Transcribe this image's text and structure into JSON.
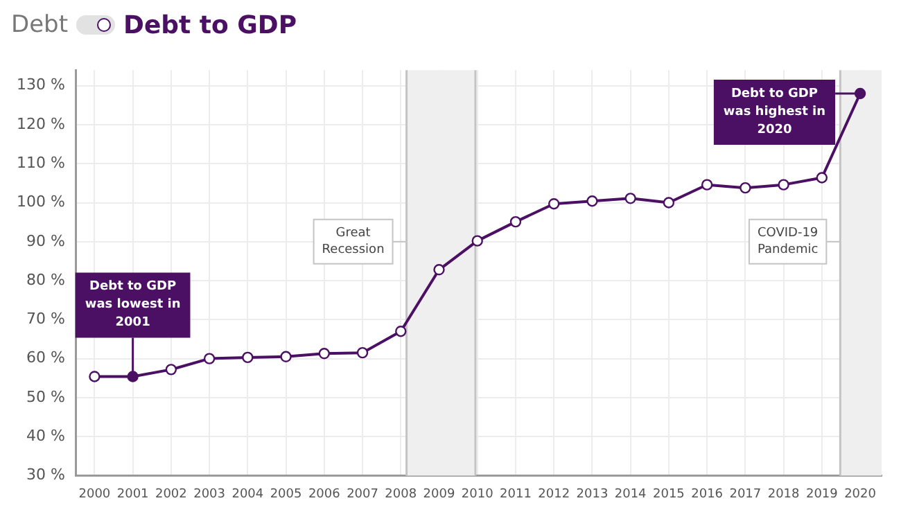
{
  "chart_data": {
    "type": "line",
    "title": "Debt to GDP",
    "subtitle": "Debt",
    "x": [
      2000,
      2001,
      2002,
      2003,
      2004,
      2005,
      2006,
      2007,
      2008,
      2009,
      2010,
      2011,
      2012,
      2013,
      2014,
      2015,
      2016,
      2017,
      2018,
      2019,
      2020
    ],
    "series": [
      {
        "color": "#4b0f63",
        "values": [
          55.4,
          55.4,
          57.2,
          60,
          60.3,
          60.5,
          61.3,
          61.5,
          67,
          82.8,
          90.2,
          95.1,
          99.7,
          100.4,
          101.1,
          100,
          104.6,
          103.8,
          104.6,
          106.4,
          128
        ]
      }
    ],
    "xlim": [
      1999.52,
      2020.56
    ],
    "xticks": [
      2000,
      2001,
      2002,
      2003,
      2004,
      2005,
      2006,
      2007,
      2008,
      2009,
      2010,
      2011,
      2012,
      2013,
      2014,
      2015,
      2016,
      2017,
      2018,
      2019,
      2020
    ],
    "ylim": [
      30,
      134
    ],
    "yticks": [
      {
        "value": 30,
        "label": "30 %"
      },
      {
        "value": 40,
        "label": "40 %"
      },
      {
        "value": 50,
        "label": "50 %"
      },
      {
        "value": 60,
        "label": "60 %"
      },
      {
        "value": 70,
        "label": "70 %"
      },
      {
        "value": 80,
        "label": "80 %"
      },
      {
        "value": 90,
        "label": "90 %"
      },
      {
        "value": 100,
        "label": "100 %"
      },
      {
        "value": 110,
        "label": "110 %"
      },
      {
        "value": 120,
        "label": "120 %"
      },
      {
        "value": 130,
        "label": "130 %"
      }
    ],
    "bands": [
      {
        "axis": "x",
        "from": 2008.15,
        "to": 2009.95,
        "label": "Great Recession",
        "color": "#efefef"
      },
      {
        "axis": "x",
        "from": 2019.48,
        "to": 2020.56,
        "label": "COVID-19 Pandemic",
        "color": "#efefef"
      }
    ],
    "annotations": [
      {
        "text": "Debt to GDP was lowest in 2001",
        "x": 2001,
        "y": 55.4
      },
      {
        "text": "Debt to GDP was highest in 2020",
        "x": 2020,
        "y": 128
      }
    ],
    "grid": true,
    "legend": false,
    "marker": "circle",
    "line_style": "solid"
  }
}
